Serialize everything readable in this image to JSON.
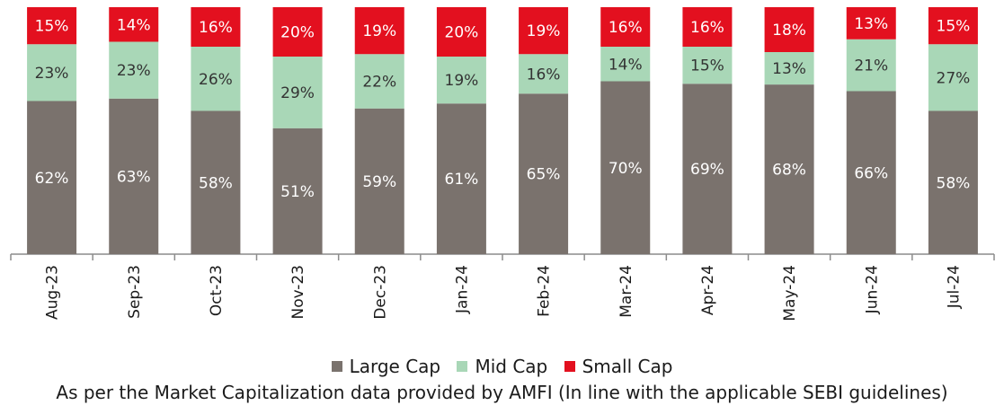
{
  "chart_data": {
    "type": "bar",
    "stacked": true,
    "categories": [
      "Aug-23",
      "Sep-23",
      "Oct-23",
      "Nov-23",
      "Dec-23",
      "Jan-24",
      "Feb-24",
      "Mar-24",
      "Apr-24",
      "May-24",
      "Jun-24",
      "Jul-24"
    ],
    "series": [
      {
        "name": "Large Cap",
        "color": "#7a726d",
        "values": [
          62,
          63,
          58,
          51,
          59,
          61,
          65,
          70,
          69,
          68,
          66,
          58
        ]
      },
      {
        "name": "Mid Cap",
        "color": "#a9d7b7",
        "values": [
          23,
          23,
          26,
          29,
          22,
          19,
          16,
          14,
          15,
          13,
          21,
          27
        ]
      },
      {
        "name": "Small Cap",
        "color": "#e3101f",
        "values": [
          15,
          14,
          16,
          20,
          19,
          20,
          19,
          16,
          16,
          18,
          13,
          15
        ]
      }
    ],
    "value_suffix": "%",
    "legend_position": "bottom",
    "grid": false
  },
  "footnote": "As per the Market Capitalization data provided by AMFI (In line with the applicable SEBI guidelines)"
}
